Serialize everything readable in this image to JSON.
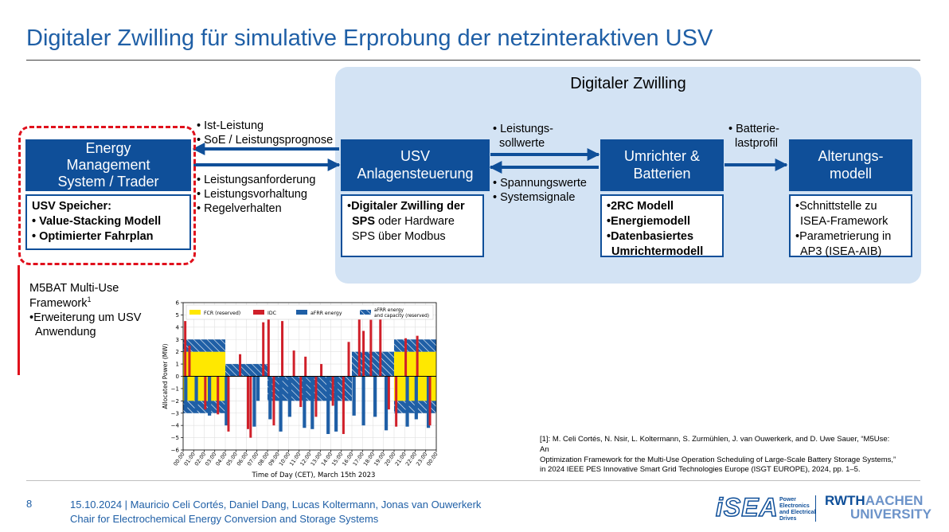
{
  "slide_title": "Digitaler Zwilling für simulative Erprobung der netzinteraktiven USV",
  "twin_label": "Digitaler Zwilling",
  "colors": {
    "accent": "#0f4f99",
    "title": "#1f5fa6",
    "twin_bg": "#d3e3f4",
    "highlight": "#e0101c"
  },
  "ems": {
    "title_lines": [
      "Energy",
      "Management",
      "System / Trader"
    ],
    "heading": "USV Speicher:",
    "items": [
      "Value-Stacking Modell",
      "Optimierter Fahrplan"
    ]
  },
  "usv": {
    "title_lines": [
      "USV",
      "Anlagensteuerung"
    ],
    "bold1": "Digitaler Zwilling der",
    "bold2": "SPS",
    "rest1": " oder Hardware",
    "rest2": "SPS über Modbus"
  },
  "umrichter": {
    "title_lines": [
      "Umrichter &",
      "Batterien"
    ],
    "items": [
      "2RC Modell",
      "Energiemodell",
      "Datenbasiertes",
      "Umrichtermodell"
    ]
  },
  "alterung": {
    "title_lines": [
      "Alterungs-",
      "modell"
    ],
    "items": [
      "Schnittstelle zu",
      "ISEA-Framework",
      "Parametrierung in",
      "AP3 (ISEA-AIB)"
    ]
  },
  "flow_labels": {
    "top_left": [
      "Ist-Leistung",
      "SoE / Leistungsprognose"
    ],
    "bottom_left": [
      "Leistungsanforderung",
      "Leistungsvorhaltung",
      "Regelverhalten"
    ],
    "top_mid": [
      "Leistungs-",
      "sollwerte"
    ],
    "bottom_mid": [
      "Spannungswerte",
      "Systemsignale"
    ],
    "top_right": [
      "Batterie-",
      "lastprofil"
    ]
  },
  "m5bat": {
    "line1": "M5BAT Multi-Use",
    "line2": "Framework",
    "sup": "1",
    "line3": "Erweiterung um USV",
    "line4": "Anwendung"
  },
  "chart_data": {
    "type": "bar",
    "title": "",
    "xlabel": "Time of Day (CET), March 15th 2023",
    "ylabel": "Allocated Power (MW)",
    "ylim": [
      -6,
      6
    ],
    "yticks": [
      -6,
      -5,
      -4,
      -3,
      -2,
      -1,
      0,
      1,
      2,
      3,
      4,
      5,
      6
    ],
    "xlim": [
      0,
      24
    ],
    "xticks": [
      "00:00",
      "01:00",
      "02:00",
      "03:00",
      "04:00",
      "05:00",
      "06:00",
      "07:00",
      "08:00",
      "09:00",
      "10:00",
      "11:00",
      "12:00",
      "13:00",
      "14:00",
      "15:00",
      "16:00",
      "17:00",
      "18:00",
      "19:00",
      "20:00",
      "21:00",
      "22:00",
      "23:00",
      "00:00"
    ],
    "legend": [
      "FCR (reserved)",
      "IDC",
      "aFRR energy",
      "aFRR energy and capacity (reserved)"
    ],
    "legend_position": "top",
    "series": [
      {
        "name": "FCR (reserved)",
        "color": "#ffe800",
        "blocks": [
          [
            0,
            4,
            -2,
            2
          ],
          [
            20,
            24,
            -2,
            2
          ]
        ]
      },
      {
        "name": "aFRR energy and capacity (reserved)",
        "color": "#1f5fa6",
        "blocks": [
          [
            0,
            4,
            2,
            3
          ],
          [
            0,
            4,
            -3,
            -2
          ],
          [
            4,
            8,
            0,
            1
          ],
          [
            8,
            16,
            -2,
            0
          ],
          [
            16,
            20,
            0,
            2
          ],
          [
            20,
            24,
            2,
            3
          ],
          [
            20,
            24,
            -3,
            -2
          ]
        ]
      },
      {
        "name": "aFRR energy",
        "color": "#1f5fa6",
        "bars": [
          [
            0.25,
            -2.6
          ],
          [
            1.25,
            -2.8
          ],
          [
            2.5,
            -3.2
          ],
          [
            4.1,
            -4
          ],
          [
            6.75,
            -4.1
          ],
          [
            7.1,
            -2
          ],
          [
            8.25,
            -3.5
          ],
          [
            9.25,
            -4.5
          ],
          [
            10.1,
            -3.3
          ],
          [
            11.5,
            -4.2
          ],
          [
            12.25,
            -4.3
          ],
          [
            13.75,
            -4.7
          ],
          [
            14.5,
            -4.5
          ],
          [
            16.2,
            -3.2
          ],
          [
            17.1,
            -4
          ],
          [
            18.2,
            -3.3
          ],
          [
            19.25,
            -4.4
          ],
          [
            21.25,
            -4.1
          ],
          [
            22.1,
            -3.5
          ],
          [
            23.25,
            -4.2
          ]
        ]
      },
      {
        "name": "IDC",
        "color": "#d0202a",
        "bars": [
          [
            0.2,
            4.5
          ],
          [
            0.6,
            2.5
          ],
          [
            2.1,
            -2.7
          ],
          [
            3.3,
            -3.1
          ],
          [
            4.3,
            -4.5
          ],
          [
            5.4,
            1.8
          ],
          [
            6.15,
            -4.3
          ],
          [
            6.4,
            -5
          ],
          [
            7.6,
            4.4
          ],
          [
            8.1,
            5.2
          ],
          [
            8.6,
            -4
          ],
          [
            9.4,
            4.5
          ],
          [
            10.5,
            2.1
          ],
          [
            11.15,
            -2.5
          ],
          [
            11.6,
            1.6
          ],
          [
            12.6,
            -3.3
          ],
          [
            13.1,
            1
          ],
          [
            14.2,
            -2.4
          ],
          [
            15.2,
            -4.7
          ],
          [
            15.7,
            2.8
          ],
          [
            16.7,
            4.7
          ],
          [
            17.1,
            3.7
          ],
          [
            17.8,
            4.6
          ],
          [
            18.7,
            4.9
          ],
          [
            19.5,
            -2.7
          ],
          [
            20.2,
            -4.1
          ],
          [
            21.1,
            3.1
          ],
          [
            22.2,
            3.3
          ],
          [
            23.4,
            -4
          ]
        ]
      }
    ]
  },
  "references": [
    "[1]: M. Celi Cortés, N. Nsir, L. Koltermann, S. Zurmühlen, J. van Ouwerkerk, and D. Uwe Sauer, “M5Use:",
    "An",
    "Optimization Framework for the Multi-Use Operation Scheduling of Large-Scale Battery Storage Systems,”",
    "in 2024 IEEE PES Innovative Smart Grid Technologies Europe (ISGT EUROPE), 2024, pp. 1–5."
  ],
  "footer": {
    "page": "8",
    "line1": "15.10.2024 | Mauricio Celi Cortés, Daniel Dang, Lucas Koltermann, Jonas van Ouwerkerk",
    "line2": "Chair for Electrochemical Energy Conversion and Storage Systems"
  },
  "logos": {
    "isea": "iSEA",
    "isea_sub": [
      "Power",
      "Electronics",
      "and Electrical",
      "Drives"
    ],
    "rwth_1": "RWTH",
    "rwth_2": "AACHEN",
    "rwth_3": "UNIVERSITY"
  }
}
